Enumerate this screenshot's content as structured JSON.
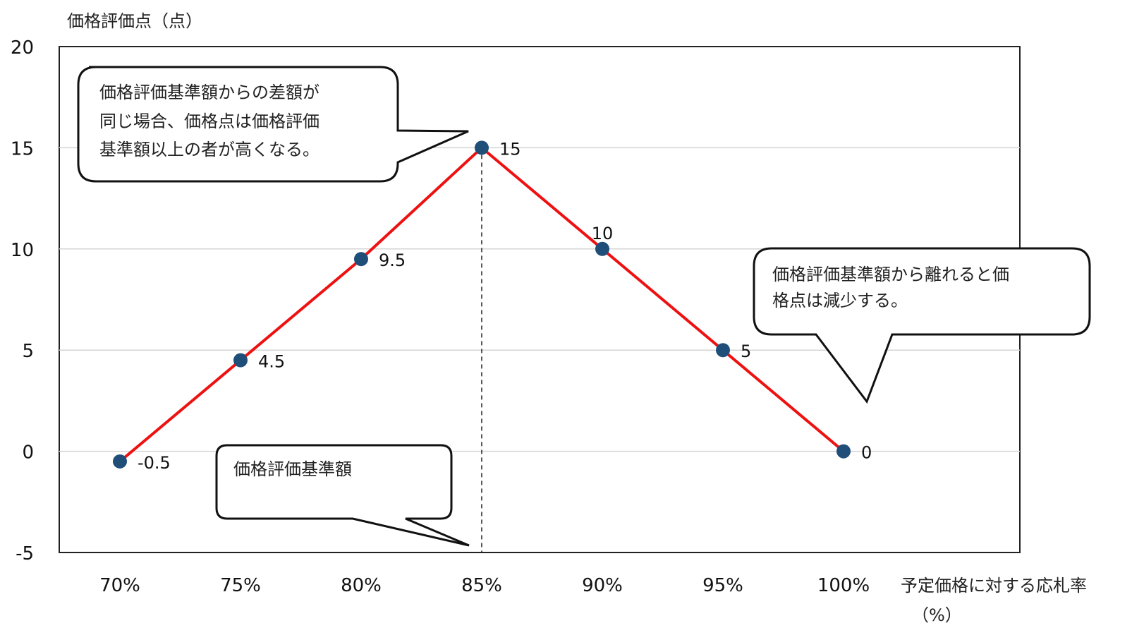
{
  "chart_data": {
    "type": "line",
    "ylabel": "価格評価点（点）",
    "xlabel_line1": "予定価格に対する応札率",
    "xlabel_line2": "（%）",
    "categories": [
      "70%",
      "75%",
      "80%",
      "85%",
      "90%",
      "95%",
      "100%"
    ],
    "x": [
      70,
      75,
      80,
      85,
      90,
      95,
      100
    ],
    "series": [
      {
        "values": [
          -0.5,
          4.5,
          9.5,
          15,
          10,
          5,
          0
        ]
      }
    ],
    "data_labels": [
      "-0.5",
      "4.5",
      "9.5",
      "15",
      "10",
      "5",
      "0"
    ],
    "yticks": [
      "20",
      "15",
      "10",
      "5",
      "0",
      "-5"
    ],
    "ylim": [
      -5,
      20
    ],
    "grid": true,
    "reference_line_x": 85,
    "line_color": "#ee1111",
    "marker_color": "#1f4e79"
  },
  "callouts": {
    "top_left": [
      "価格評価基準額からの差額が",
      "同じ場合、価格点は価格評価",
      "基準額以上の者が高くなる。"
    ],
    "right": [
      "価格評価基準額から離れると価",
      "格点は減少する。"
    ],
    "bottom": [
      "価格評価基準額"
    ]
  }
}
